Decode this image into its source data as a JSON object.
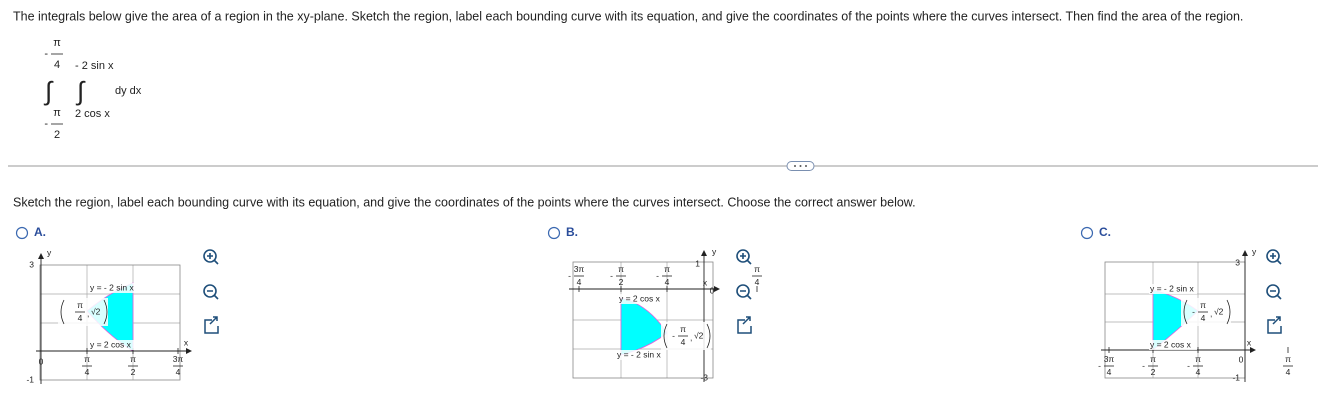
{
  "question": "The integrals below give the area of a region in the xy-plane. Sketch the region, label each bounding curve with its equation, and give the coordinates of the points where the curves intersect. Then find the area of the region.",
  "integral": {
    "symbol": "∫",
    "outer_upper": {
      "sign": "-",
      "num": "π",
      "den": "4"
    },
    "outer_lower": {
      "sign": "-",
      "num": "π",
      "den": "2"
    },
    "inner_upper": "- 2 sin x",
    "inner_lower": "2 cos x",
    "integrand": "dy dx"
  },
  "instruction": "Sketch the region, label each bounding curve with its equation, and give the coordinates of the points where the curves intersect. Choose the correct answer below.",
  "options": [
    {
      "label": "A.",
      "graph": {
        "y_label": "y",
        "x_label": "x",
        "y_max": "3",
        "y_min": "-1",
        "origin": "0",
        "xticks": [
          {
            "num": "π",
            "den": "4"
          },
          {
            "num": "π",
            "den": "2"
          },
          {
            "num": "3π",
            "den": "4"
          }
        ],
        "curves": [
          "y = - 2 sin x",
          "y = 2 cos x"
        ],
        "point": {
          "num": "π",
          "den": "4",
          "sep": ",",
          "y": "√2"
        }
      }
    },
    {
      "label": "B.",
      "graph": {
        "y_label": "y",
        "x_label": "x",
        "y_max": "1",
        "y_min": "-3",
        "origin": "0",
        "xticks": [
          {
            "sign": "-",
            "num": "3π",
            "den": "4"
          },
          {
            "sign": "-",
            "num": "π",
            "den": "2"
          },
          {
            "sign": "-",
            "num": "π",
            "den": "4"
          },
          {
            "num": "π",
            "den": "4"
          }
        ],
        "curves": [
          "y = 2 cos x",
          "y = - 2 sin x"
        ],
        "point": {
          "sign": "-",
          "num": "π",
          "den": "4",
          "sep": ",",
          "y": "√2"
        }
      }
    },
    {
      "label": "C.",
      "graph": {
        "y_label": "y",
        "x_label": "x",
        "y_max": "3",
        "y_min": "-1",
        "origin": "0",
        "xticks": [
          {
            "sign": "-",
            "num": "3π",
            "den": "4"
          },
          {
            "sign": "-",
            "num": "π",
            "den": "2"
          },
          {
            "sign": "-",
            "num": "π",
            "den": "4"
          },
          {
            "num": "π",
            "den": "4"
          }
        ],
        "curves": [
          "y = - 2 sin x",
          "y = 2 cos x"
        ],
        "point": {
          "sign": "-",
          "num": "π",
          "den": "4",
          "sep": ",",
          "y": "√2"
        }
      }
    }
  ]
}
